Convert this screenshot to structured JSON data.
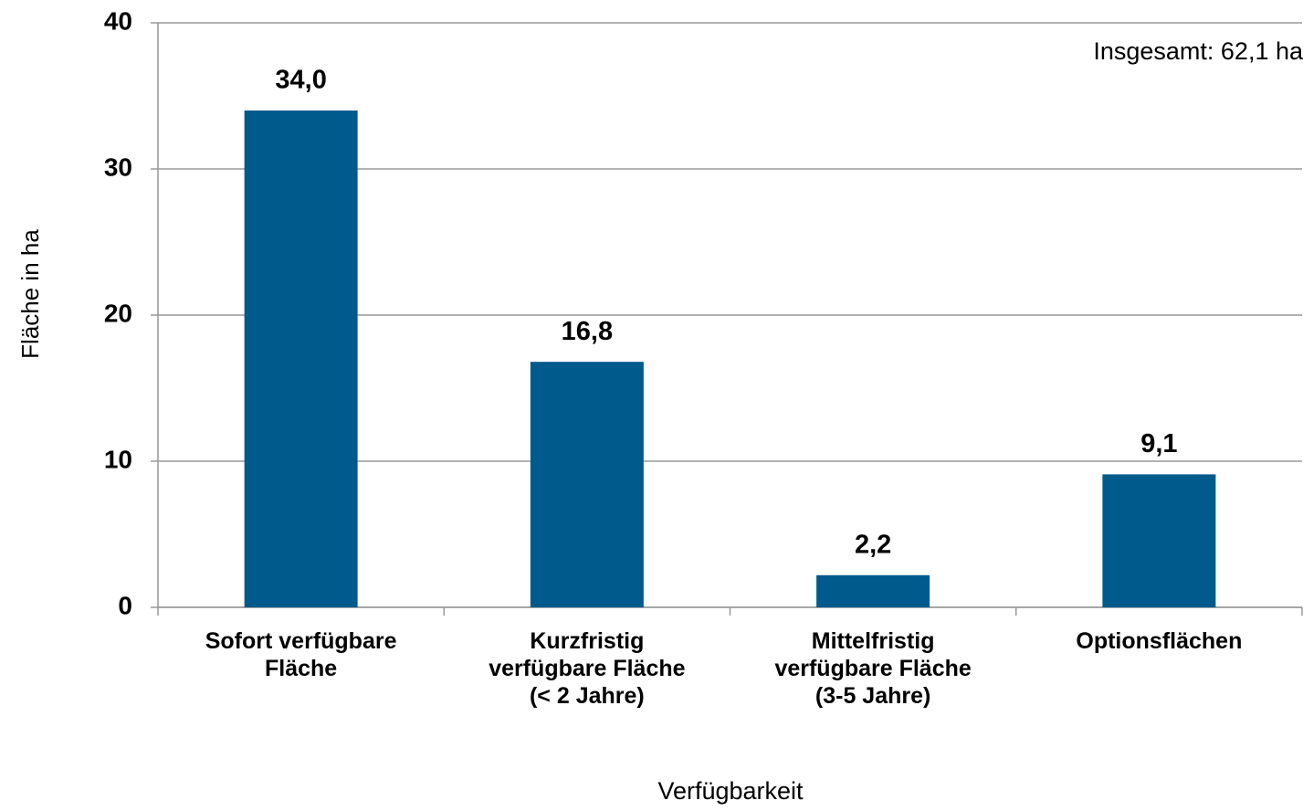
{
  "chart_data": {
    "type": "bar",
    "categories": [
      "Sofort verfügbare\nFläche",
      "Kurzfristig\nverfügbare Fläche\n(< 2 Jahre)",
      "Mittelfristig\nverfügbare Fläche\n(3-5 Jahre)",
      "Optionsflächen"
    ],
    "values": [
      34.0,
      16.8,
      2.2,
      9.1
    ],
    "value_labels": [
      "34,0",
      "16,8",
      "2,2",
      "9,1"
    ],
    "color": "#005a8c",
    "ylim": [
      0,
      40
    ],
    "yticks": [
      0,
      10,
      20,
      30,
      40
    ],
    "grid": true,
    "y_label": "Fläche in ha",
    "x_label": "Verfügbarkeit",
    "annotation": "Insgesamt: 62,1 ha"
  }
}
